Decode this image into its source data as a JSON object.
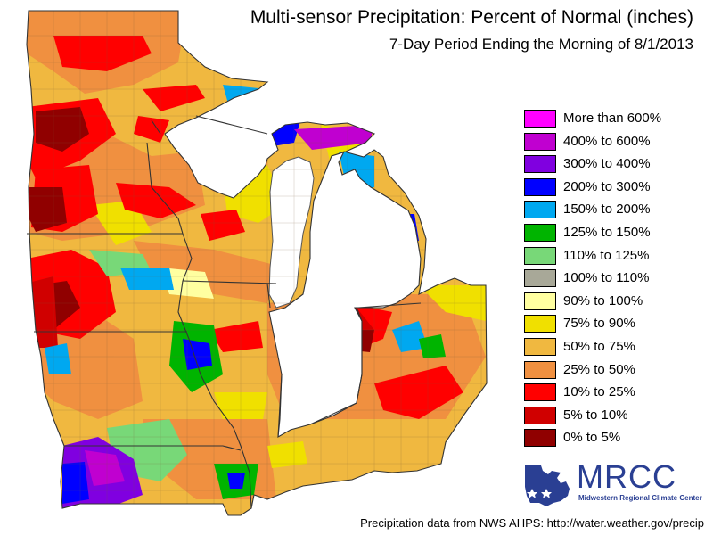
{
  "title": "Multi-sensor Precipitation: Percent of Normal (inches)",
  "subtitle": "7-Day Period Ending the Morning of 8/1/2013",
  "legend": [
    {
      "label": "More than 600%",
      "color": "#ff00ff"
    },
    {
      "label": "400% to 600%",
      "color": "#c000d0"
    },
    {
      "label": "300% to 400%",
      "color": "#8000e0"
    },
    {
      "label": "200% to 300%",
      "color": "#0000ff"
    },
    {
      "label": "150% to 200%",
      "color": "#00a8f0"
    },
    {
      "label": "125% to 150%",
      "color": "#00b400"
    },
    {
      "label": "110% to 125%",
      "color": "#78d878"
    },
    {
      "label": "100% to 110%",
      "color": "#a8a898"
    },
    {
      "label": "90% to 100%",
      "color": "#ffffa0"
    },
    {
      "label": "75% to 90%",
      "color": "#f0e000"
    },
    {
      "label": "50% to 75%",
      "color": "#f0b840"
    },
    {
      "label": "25% to 50%",
      "color": "#f09040"
    },
    {
      "label": "10% to 25%",
      "color": "#ff0000"
    },
    {
      "label": "5% to 10%",
      "color": "#d00000"
    },
    {
      "label": "0% to 5%",
      "color": "#900000"
    }
  ],
  "logo": {
    "name": "MRCC",
    "subtitle": "Midwestern Regional Climate Center"
  },
  "footer": "Precipitation data from NWS AHPS:  http://water.weather.gov/precip"
}
